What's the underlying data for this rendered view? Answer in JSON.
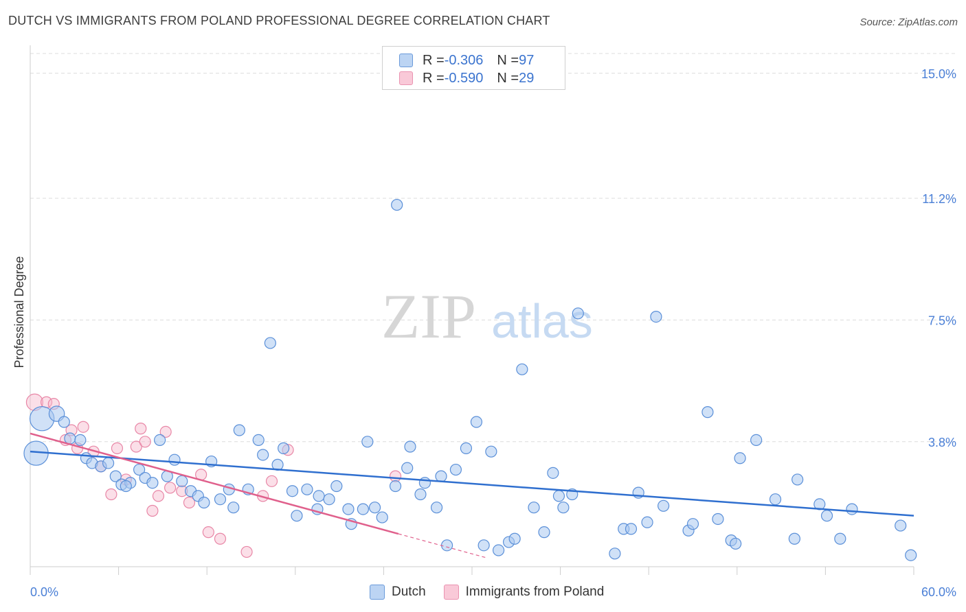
{
  "header": {
    "title": "DUTCH VS IMMIGRANTS FROM POLAND PROFESSIONAL DEGREE CORRELATION CHART",
    "source": "Source: ZipAtlas.com"
  },
  "watermark": {
    "zip": "ZIP",
    "atlas": "atlas"
  },
  "legend": {
    "rows": [
      {
        "r_label": "R = ",
        "r_value": "-0.306",
        "n_label": "N = ",
        "n_value": "97"
      },
      {
        "r_label": "R = ",
        "r_value": "-0.590",
        "n_label": "N = ",
        "n_value": "29"
      }
    ]
  },
  "bottom_legend": [
    "Dutch",
    "Immigrants from Poland"
  ],
  "colors": {
    "dutch_fill": "#a9c8f0",
    "dutch_stroke": "#5a8fd8",
    "dutch_line": "#2f6fcf",
    "poland_fill": "#f7b9cc",
    "poland_stroke": "#e886a6",
    "poland_line": "#e0608c",
    "grid": "#dcdcdc",
    "axis_text": "#4a7fd6"
  },
  "chart_data": {
    "type": "scatter",
    "title": "DUTCH VS IMMIGRANTS FROM POLAND PROFESSIONAL DEGREE CORRELATION CHART",
    "xlabel": "",
    "ylabel": "Professional Degree",
    "xlim": [
      0,
      60
    ],
    "ylim": [
      0,
      15.6
    ],
    "x_tick_labels": [
      "0.0%",
      "60.0%"
    ],
    "y_ticks": [
      3.8,
      7.5,
      11.2,
      15.0
    ],
    "y_tick_labels": [
      "3.8%",
      "7.5%",
      "11.2%",
      "15.0%"
    ],
    "grid": true,
    "legend_position": "top-center",
    "series": [
      {
        "name": "Dutch",
        "r": -0.306,
        "n": 97,
        "trend": {
          "x0": 0,
          "y0": 3.5,
          "x1": 60,
          "y1": 1.55
        },
        "points": [
          [
            0.4,
            3.45,
            2.2
          ],
          [
            0.8,
            4.5,
            2.2
          ],
          [
            1.8,
            4.65,
            1.4
          ],
          [
            2.3,
            4.4,
            1
          ],
          [
            2.7,
            3.9,
            1
          ],
          [
            3.4,
            3.85,
            1
          ],
          [
            3.8,
            3.3,
            1
          ],
          [
            4.2,
            3.15,
            1
          ],
          [
            4.8,
            3.05,
            1
          ],
          [
            5.3,
            3.15,
            1
          ],
          [
            5.8,
            2.75,
            1
          ],
          [
            6.2,
            2.5,
            1
          ],
          [
            6.8,
            2.55,
            1
          ],
          [
            7.4,
            2.95,
            1
          ],
          [
            7.8,
            2.7,
            1
          ],
          [
            8.3,
            2.55,
            1
          ],
          [
            8.8,
            3.85,
            1
          ],
          [
            9.3,
            2.75,
            1
          ],
          [
            9.8,
            3.25,
            1
          ],
          [
            10.3,
            2.6,
            1
          ],
          [
            10.9,
            2.3,
            1
          ],
          [
            11.4,
            2.15,
            1
          ],
          [
            11.8,
            1.95,
            1
          ],
          [
            12.3,
            3.2,
            1
          ],
          [
            12.9,
            2.05,
            1
          ],
          [
            13.5,
            2.35,
            1
          ],
          [
            13.8,
            1.8,
            1
          ],
          [
            14.2,
            4.15,
            1
          ],
          [
            14.8,
            2.35,
            1
          ],
          [
            15.5,
            3.85,
            1
          ],
          [
            15.8,
            3.4,
            1
          ],
          [
            16.3,
            6.8,
            1
          ],
          [
            16.8,
            3.1,
            1
          ],
          [
            17.2,
            3.6,
            1
          ],
          [
            17.8,
            2.3,
            1
          ],
          [
            18.1,
            1.55,
            1
          ],
          [
            18.8,
            2.35,
            1
          ],
          [
            19.5,
            1.75,
            1
          ],
          [
            19.6,
            2.15,
            1
          ],
          [
            20.3,
            2.05,
            1
          ],
          [
            20.8,
            2.45,
            1
          ],
          [
            21.6,
            1.75,
            1
          ],
          [
            21.8,
            1.3,
            1
          ],
          [
            22.6,
            1.75,
            1
          ],
          [
            22.9,
            3.8,
            1
          ],
          [
            23.4,
            1.8,
            1
          ],
          [
            23.9,
            1.5,
            1
          ],
          [
            24.8,
            2.45,
            1
          ],
          [
            24.9,
            11.0,
            1
          ],
          [
            25.6,
            3.0,
            1
          ],
          [
            25.8,
            3.65,
            1
          ],
          [
            26.5,
            2.2,
            1
          ],
          [
            26.8,
            2.55,
            1
          ],
          [
            27.6,
            1.8,
            1
          ],
          [
            27.9,
            2.75,
            1
          ],
          [
            28.3,
            0.65,
            1
          ],
          [
            28.9,
            2.95,
            1
          ],
          [
            29.6,
            3.6,
            1
          ],
          [
            30.3,
            4.4,
            1
          ],
          [
            30.8,
            0.65,
            1
          ],
          [
            31.3,
            3.5,
            1
          ],
          [
            31.8,
            0.5,
            1
          ],
          [
            32.5,
            0.75,
            1
          ],
          [
            32.9,
            0.85,
            1
          ],
          [
            33.4,
            6.0,
            1
          ],
          [
            34.2,
            1.8,
            1
          ],
          [
            34.9,
            1.05,
            1
          ],
          [
            35.5,
            2.85,
            1
          ],
          [
            35.9,
            2.15,
            1
          ],
          [
            36.2,
            1.8,
            1
          ],
          [
            36.8,
            2.2,
            1
          ],
          [
            37.2,
            7.7,
            1
          ],
          [
            39.7,
            0.4,
            1
          ],
          [
            40.3,
            1.15,
            1
          ],
          [
            40.8,
            1.15,
            1
          ],
          [
            41.3,
            2.25,
            1
          ],
          [
            41.9,
            1.35,
            1
          ],
          [
            42.5,
            7.6,
            1
          ],
          [
            43.0,
            1.85,
            1
          ],
          [
            44.7,
            1.1,
            1
          ],
          [
            45.0,
            1.3,
            1
          ],
          [
            46.0,
            4.7,
            1
          ],
          [
            46.7,
            1.45,
            1
          ],
          [
            47.6,
            0.8,
            1
          ],
          [
            47.9,
            0.7,
            1
          ],
          [
            48.2,
            3.3,
            1
          ],
          [
            49.3,
            3.85,
            1
          ],
          [
            50.6,
            2.05,
            1
          ],
          [
            51.9,
            0.85,
            1
          ],
          [
            52.1,
            2.65,
            1
          ],
          [
            53.6,
            1.9,
            1
          ],
          [
            54.1,
            1.55,
            1
          ],
          [
            55.0,
            0.85,
            1
          ],
          [
            55.8,
            1.75,
            1
          ],
          [
            59.1,
            1.25,
            1
          ],
          [
            59.8,
            0.35,
            1
          ],
          [
            6.5,
            2.45,
            1
          ]
        ]
      },
      {
        "name": "Immigrants from Poland",
        "r": -0.59,
        "n": 29,
        "trend": {
          "x0": 0,
          "y0": 4.05,
          "x1": 25,
          "y1": 1.0,
          "dash_to_x": 31,
          "dash_to_y": 0.27
        },
        "points": [
          [
            0.3,
            5.0,
            1.5
          ],
          [
            1.1,
            5.0,
            1
          ],
          [
            1.6,
            4.95,
            1
          ],
          [
            2.4,
            3.85,
            1
          ],
          [
            2.8,
            4.15,
            1
          ],
          [
            3.2,
            3.6,
            1
          ],
          [
            3.6,
            4.25,
            1
          ],
          [
            4.3,
            3.5,
            1
          ],
          [
            4.8,
            3.05,
            1
          ],
          [
            5.5,
            2.2,
            1
          ],
          [
            5.9,
            3.6,
            1
          ],
          [
            6.5,
            2.65,
            1
          ],
          [
            7.2,
            3.65,
            1
          ],
          [
            7.5,
            4.2,
            1
          ],
          [
            7.8,
            3.8,
            1
          ],
          [
            8.3,
            1.7,
            1
          ],
          [
            8.7,
            2.15,
            1
          ],
          [
            9.2,
            4.1,
            1
          ],
          [
            9.5,
            2.4,
            1
          ],
          [
            10.3,
            2.3,
            1
          ],
          [
            10.8,
            1.95,
            1
          ],
          [
            11.6,
            2.8,
            1
          ],
          [
            12.1,
            1.05,
            1
          ],
          [
            12.9,
            0.85,
            1
          ],
          [
            14.7,
            0.45,
            1
          ],
          [
            15.8,
            2.15,
            1
          ],
          [
            16.4,
            2.6,
            1
          ],
          [
            17.5,
            3.55,
            1
          ],
          [
            24.8,
            2.75,
            1
          ]
        ]
      }
    ]
  }
}
